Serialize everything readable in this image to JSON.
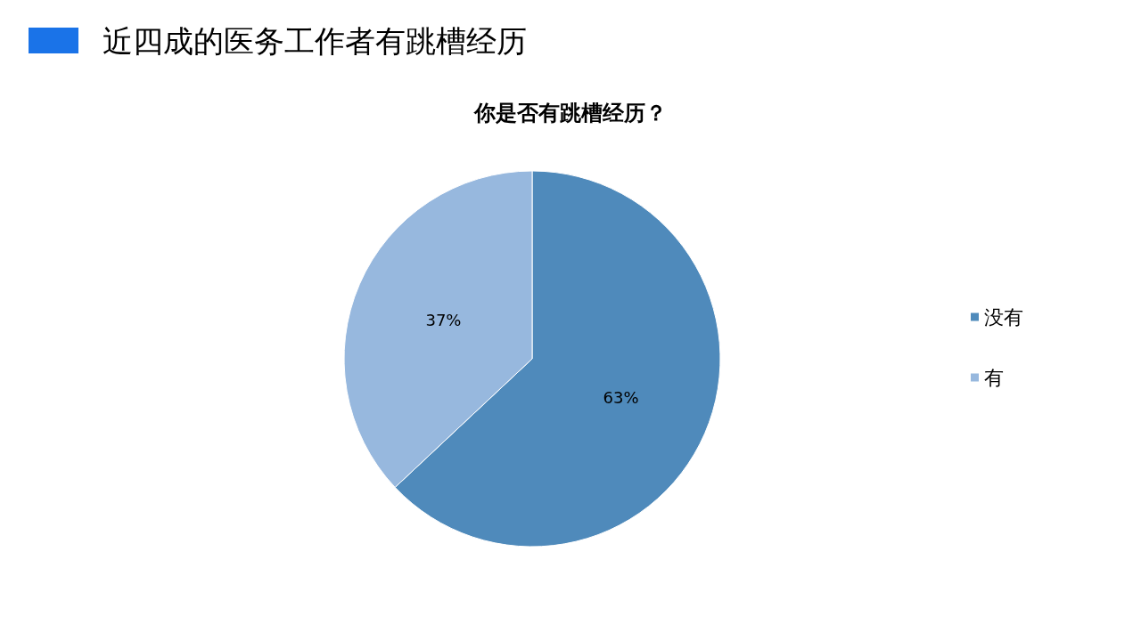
{
  "chart_data": {
    "type": "pie",
    "title": "近四成的医务工作者有跳槽经历",
    "subtitle": "你是否有跳槽经历？",
    "categories": [
      "没有",
      "有"
    ],
    "values": [
      63,
      37
    ],
    "value_labels": [
      "63%",
      "37%"
    ],
    "colors": [
      "#4f8abb",
      "#97b8de"
    ],
    "legend": "right"
  }
}
